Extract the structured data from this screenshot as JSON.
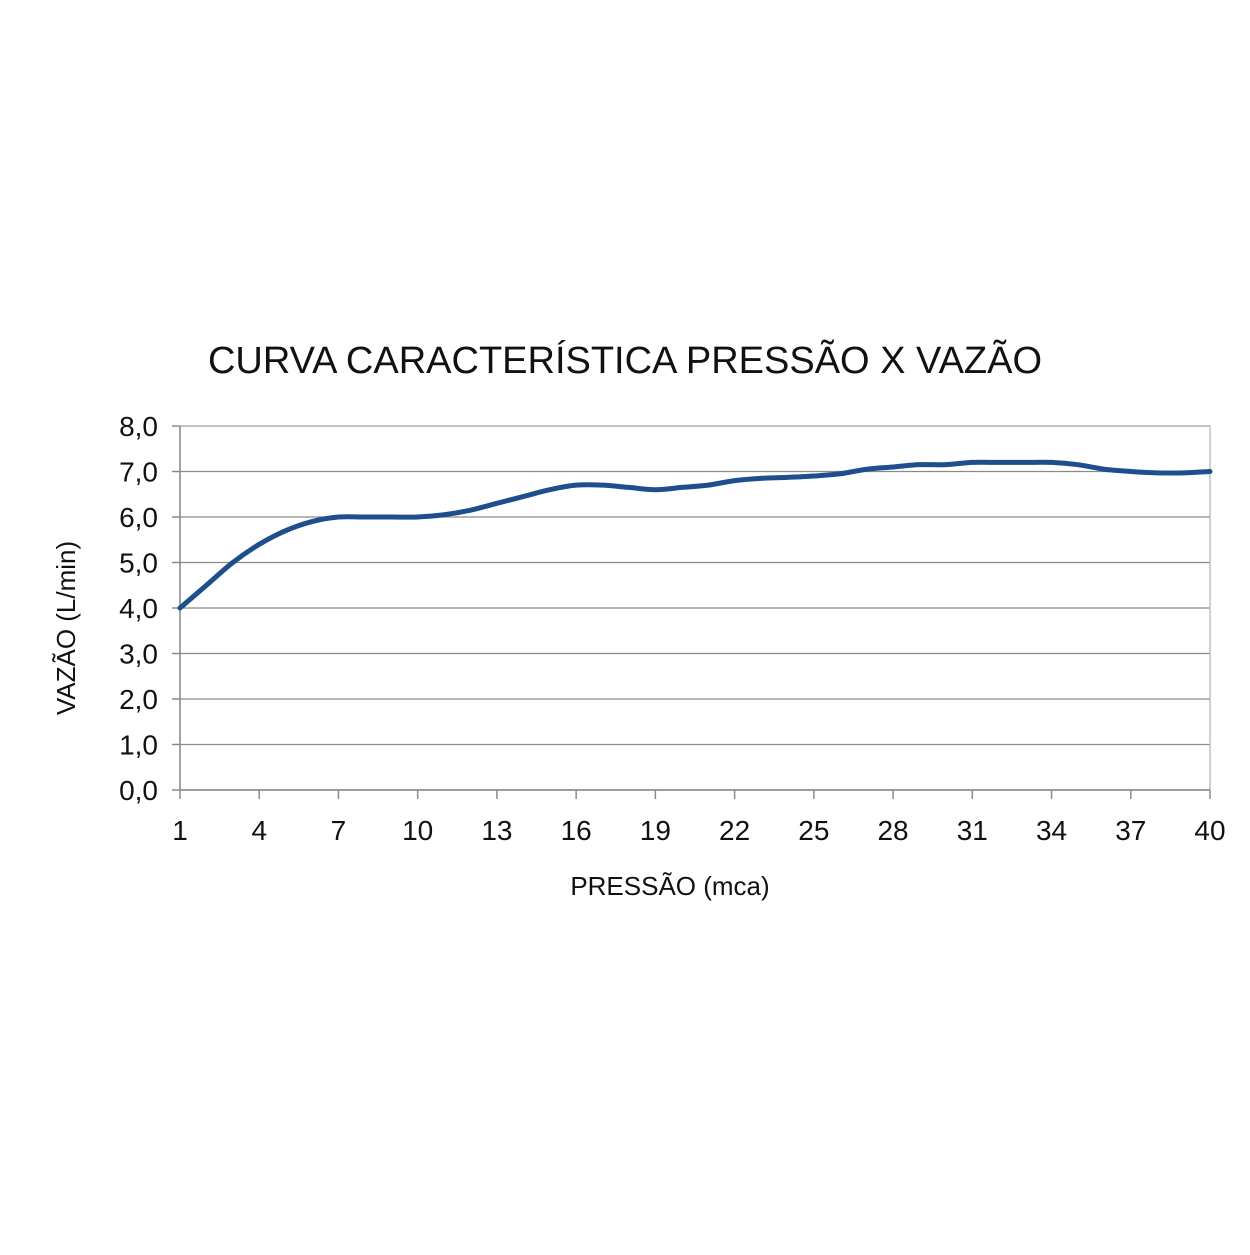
{
  "chart_data": {
    "type": "line",
    "title": "CURVA CARACTERÍSTICA PRESSÃO X VAZÃO",
    "xlabel": "PRESSÃO (mca)",
    "ylabel": "VAZÃO (L/min)",
    "xlim": [
      1,
      40
    ],
    "ylim": [
      0,
      8
    ],
    "x_ticks": [
      1,
      4,
      7,
      10,
      13,
      16,
      19,
      22,
      25,
      28,
      31,
      34,
      37,
      40
    ],
    "x_tick_labels": [
      "1",
      "4",
      "7",
      "10",
      "13",
      "16",
      "19",
      "22",
      "25",
      "28",
      "31",
      "34",
      "37",
      "40"
    ],
    "y_ticks": [
      0,
      1,
      2,
      3,
      4,
      5,
      6,
      7,
      8
    ],
    "y_tick_labels": [
      "0,0",
      "1,0",
      "2,0",
      "3,0",
      "4,0",
      "5,0",
      "6,0",
      "7,0",
      "8,0"
    ],
    "grid": "horizontal",
    "legend": "none",
    "line_color": "#1f4e8c",
    "series": [
      {
        "x": [
          1,
          2,
          3,
          4,
          5,
          6,
          7,
          8,
          9,
          10,
          11,
          12,
          13,
          14,
          15,
          16,
          17,
          18,
          19,
          20,
          21,
          22,
          23,
          24,
          25,
          26,
          27,
          28,
          29,
          30,
          31,
          32,
          33,
          34,
          35,
          36,
          37,
          38,
          39,
          40
        ],
        "values": [
          4.0,
          4.5,
          5.0,
          5.4,
          5.7,
          5.9,
          6.0,
          6.0,
          6.0,
          6.0,
          6.05,
          6.15,
          6.3,
          6.45,
          6.6,
          6.7,
          6.7,
          6.65,
          6.6,
          6.65,
          6.7,
          6.8,
          6.85,
          6.87,
          6.9,
          6.95,
          7.05,
          7.1,
          7.15,
          7.15,
          7.2,
          7.2,
          7.2,
          7.2,
          7.15,
          7.05,
          7.0,
          6.97,
          6.97,
          7.0
        ]
      }
    ]
  }
}
